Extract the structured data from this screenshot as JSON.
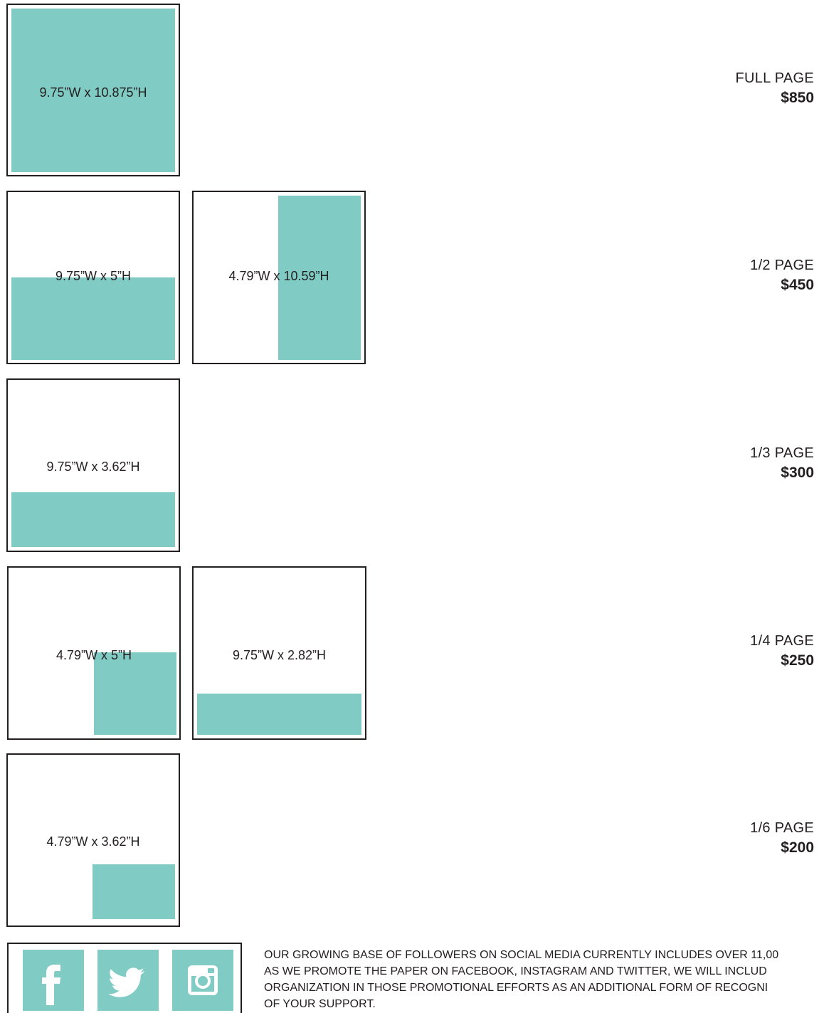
{
  "ads": [
    {
      "size_label": "FULL PAGE",
      "price": "$850",
      "layouts": [
        {
          "dimensions": "9.75”W x 10.875”H"
        }
      ]
    },
    {
      "size_label": "1/2 PAGE",
      "price": "$450",
      "layouts": [
        {
          "dimensions": "9.75”W x 5”H"
        },
        {
          "dimensions": "4.79”W x 10.59”H"
        }
      ]
    },
    {
      "size_label": "1/3 PAGE",
      "price": "$300",
      "layouts": [
        {
          "dimensions": "9.75”W x 3.62”H"
        }
      ]
    },
    {
      "size_label": "1/4 PAGE",
      "price": "$250",
      "layouts": [
        {
          "dimensions": "4.79”W x 5”H"
        },
        {
          "dimensions": "9.75”W x 2.82”H"
        }
      ]
    },
    {
      "size_label": "1/6 PAGE",
      "price": "$200",
      "layouts": [
        {
          "dimensions": "4.79”W x 3.62”H"
        }
      ]
    }
  ],
  "social": {
    "icons": [
      "facebook-icon",
      "twitter-icon",
      "instagram-icon"
    ],
    "lines": [
      "OUR GROWING BASE OF FOLLOWERS ON SOCIAL MEDIA CURRENTLY INCLUDES OVER 11,00",
      "AS WE PROMOTE THE PAPER ON FACEBOOK, INSTAGRAM AND TWITTER, WE WILL INCLUD",
      "ORGANIZATION IN THOSE PROMOTIONAL EFFORTS AS AN ADDITIONAL FORM OF RECOGNI",
      "OF YOUR SUPPORT."
    ]
  },
  "colors": {
    "accent": "#80cbc4",
    "border": "#231f20",
    "text": "#231f20"
  }
}
